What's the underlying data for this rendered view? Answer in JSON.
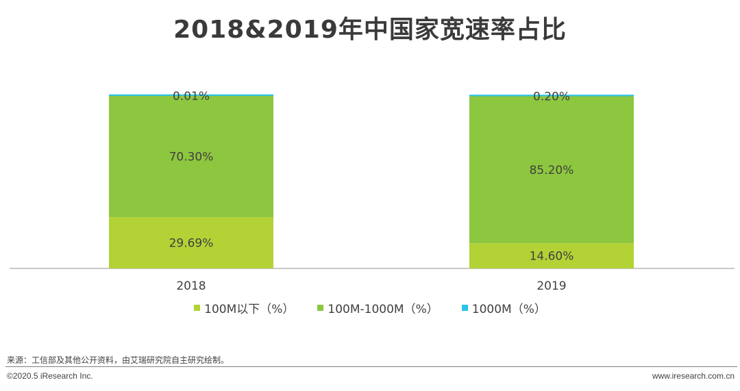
{
  "chart_data": {
    "type": "bar",
    "stacked": true,
    "percent_stacked": true,
    "title": "2018&2019年中国家宽速率占比",
    "categories": [
      "2018",
      "2019"
    ],
    "series": [
      {
        "name": "100M以下（%）",
        "color": "#b2d235",
        "values": [
          29.69,
          14.6
        ],
        "labels": [
          "29.69%",
          "14.60%"
        ]
      },
      {
        "name": "100M-1000M（%）",
        "color": "#8dc63f",
        "values": [
          70.3,
          85.2
        ],
        "labels": [
          "70.30%",
          "85.20%"
        ]
      },
      {
        "name": "1000M（%）",
        "color": "#29c4e8",
        "values": [
          0.01,
          0.2
        ],
        "labels": [
          "0.01%",
          "0.20%"
        ]
      }
    ],
    "ylim": [
      0,
      100
    ],
    "grid": false,
    "legend_position": "bottom"
  },
  "source_note": "来源：工信部及其他公开资料，由艾瑞研究院自主研究绘制。",
  "copyright": "©2020.5 iResearch Inc.",
  "website": "www.iresearch.com.cn"
}
